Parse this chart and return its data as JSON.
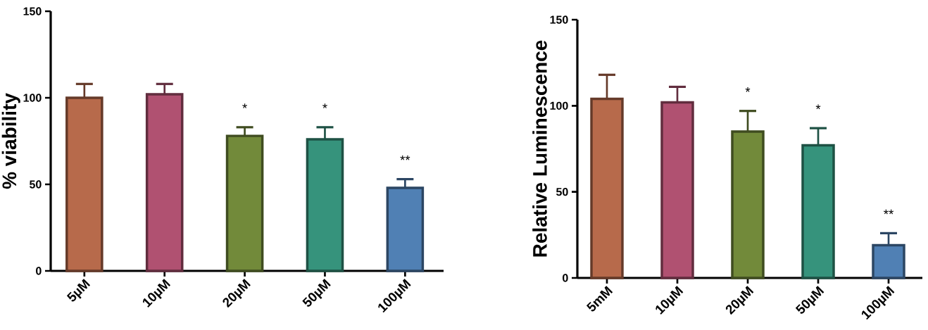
{
  "chart_data": [
    {
      "type": "bar",
      "ylabel": "% viability",
      "categories": [
        "5µM",
        "10µM",
        "20µM",
        "50µM",
        "100µM"
      ],
      "values": [
        100,
        102,
        78,
        76,
        48
      ],
      "errors": [
        [
          100,
          108
        ],
        [
          102,
          108
        ],
        [
          78,
          83
        ],
        [
          76,
          83
        ],
        [
          48,
          53
        ]
      ],
      "colors": [
        "#b76a4b",
        "#b05171",
        "#728a3a",
        "#36937c",
        "#5080b4"
      ],
      "ylim": [
        0,
        150
      ],
      "yticks": [
        0,
        50,
        100,
        150
      ],
      "grid": false,
      "annotations": [
        "*",
        "*",
        "**"
      ]
    },
    {
      "type": "bar",
      "ylabel": "Relative Luminescence",
      "categories": [
        "5mM",
        "10µM",
        "20µM",
        "50µM",
        "100µM"
      ],
      "values": [
        104,
        102,
        85,
        77,
        19
      ],
      "errors": [
        [
          104,
          118
        ],
        [
          102,
          111
        ],
        [
          85,
          97
        ],
        [
          77,
          87
        ],
        [
          19,
          26
        ]
      ],
      "colors": [
        "#b76a4b",
        "#b05171",
        "#728a3a",
        "#36937c",
        "#5080b4"
      ],
      "ylim": [
        0,
        150
      ],
      "yticks": [
        0,
        50,
        100,
        150
      ],
      "grid": false,
      "annotations": [
        "*",
        "*",
        "**"
      ]
    }
  ]
}
